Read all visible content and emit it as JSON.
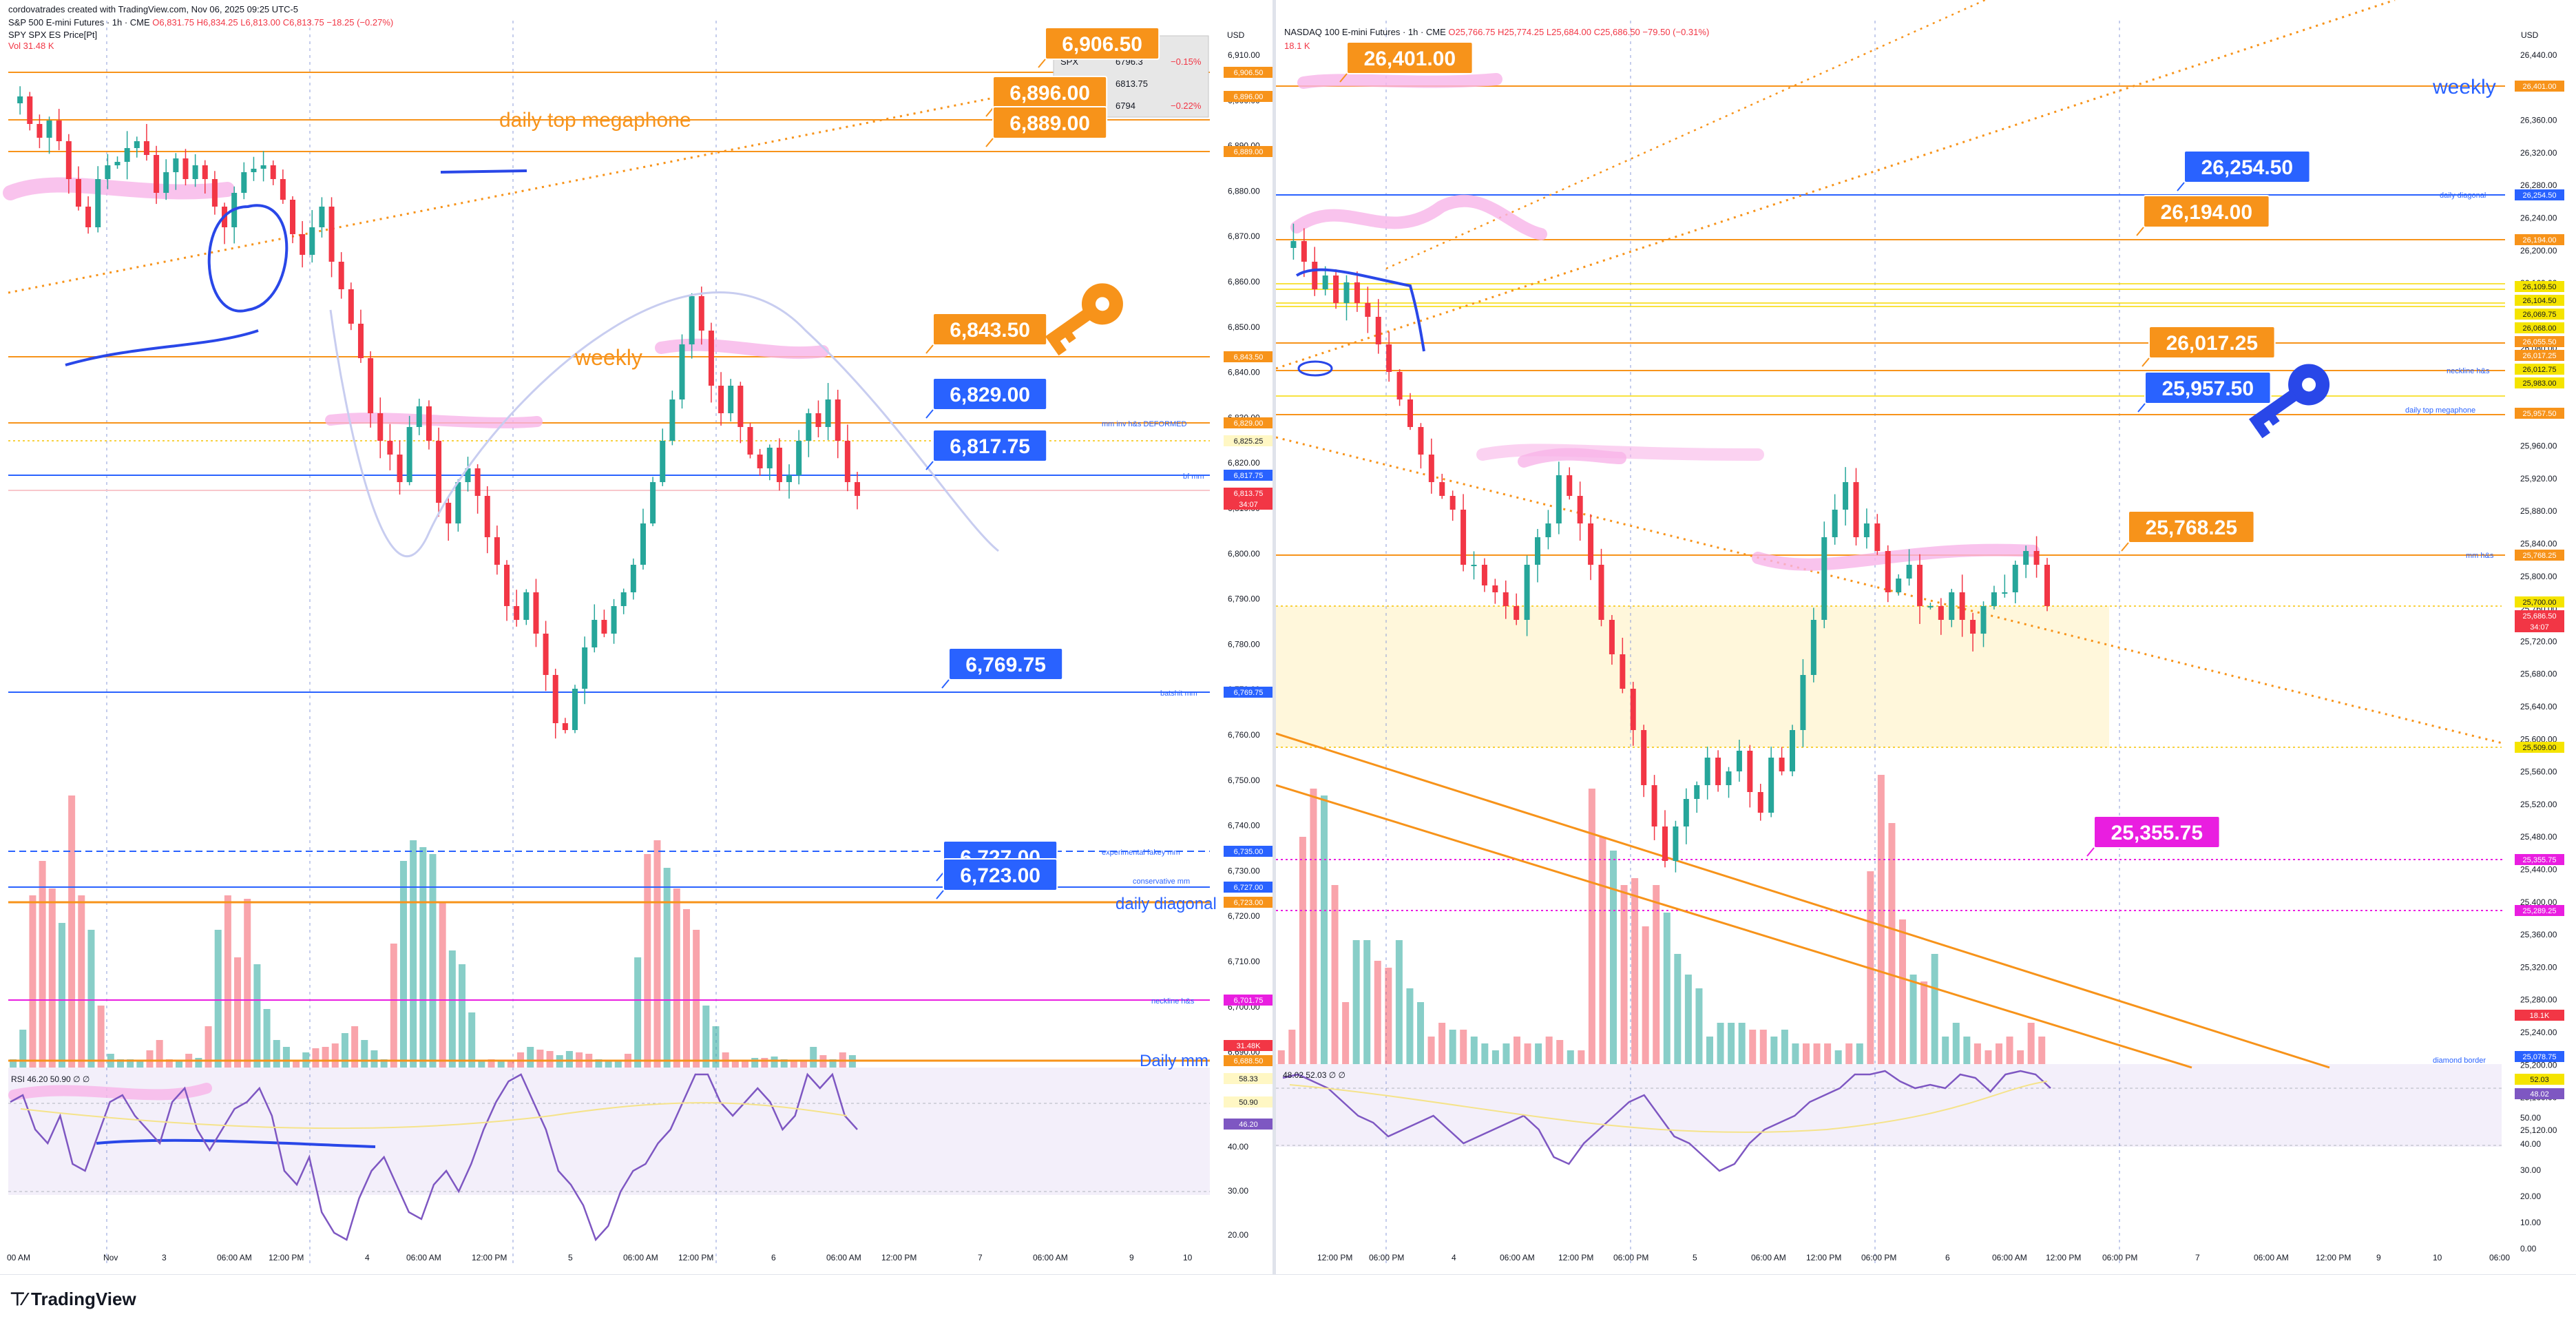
{
  "watermark": {
    "credit": "cordovatrades created with TradingView.com, Nov 06, 2025 09:25 UTC-5"
  },
  "footer": {
    "logo": "TradingView"
  },
  "colors": {
    "up": "#26a69a",
    "down": "#f23645",
    "orange": "#f7931a",
    "blue": "#2962ff",
    "magenta": "#e91ee0",
    "pink": "#f8b4e8",
    "rsi": "#7e57c2"
  },
  "left": {
    "header": {
      "symbol": "S&P 500 E-mini Futures · 1h · CME",
      "open": "O6,831.75",
      "high": "H6,834.25",
      "low": "L6,813.00",
      "close": "C6,813.75",
      "change": "−18.25 (−0.27%)",
      "line2": "SPY SPX ES Price[Pt]",
      "line3": "Vol 31.48 K"
    },
    "currency": "USD",
    "price_labels": [
      "6,910.00",
      "6,900.00",
      "6,890.00",
      "6,880.00",
      "6,870.00",
      "6,860.00",
      "6,850.00",
      "6,840.00",
      "6,830.00",
      "6,820.00",
      "6,810.00",
      "6,800.00",
      "6,790.00",
      "6,780.00",
      "6,770.00",
      "6,760.00",
      "6,750.00",
      "6,740.00",
      "6,730.00",
      "6,720.00",
      "6,710.00",
      "6,700.00",
      "6,690.00"
    ],
    "rsi_labels": [
      "50.00",
      "40.00",
      "30.00",
      "20.00"
    ],
    "time_labels": [
      "00 AM",
      "Nov",
      "3",
      "06:00 AM",
      "12:00 PM",
      "4",
      "06:00 AM",
      "12:00 PM",
      "5",
      "06:00 AM",
      "12:00 PM",
      "6",
      "06:00 AM",
      "12:00 PM",
      "7",
      "06:00 AM",
      "9",
      "10"
    ],
    "level_callouts": [
      "6,906.50",
      "6,896.00",
      "6,889.00",
      "6,843.50",
      "6,829.00",
      "6,817.75",
      "6,769.75",
      "6,727.00",
      "6,723.00"
    ],
    "annotations": {
      "daily_top_megaphone": "daily top megaphone",
      "weekly": "weekly",
      "daily_diagonal": "daily diagonal",
      "daily_mm": "Daily mm",
      "mm_inv_hbs": "mm inv h&s   DEFORMED",
      "bf_mm": "bf mm",
      "batshit_mm": "batshit mm",
      "experimental": "experimental fakey mm",
      "conservative": "conservative mm",
      "neckline": "neckline h&s"
    },
    "axis_tags": [
      "6,906.50",
      "6,896.00",
      "6,889.00",
      "6,843.50",
      "6,829.00",
      "6,825.25",
      "6,817.75",
      "6,813.75",
      "34:07",
      "6,769.75",
      "6,735.00",
      "6,727.00",
      "6,723.00",
      "6,701.75",
      "31.48K",
      "6,688.50",
      "58.33",
      "50.90",
      "46.20"
    ],
    "overlay_table": {
      "rows": [
        [
          "SPX",
          "6796.3",
          "−0.15%"
        ],
        [
          "",
          "6813.75",
          ""
        ],
        [
          "",
          "6794",
          "−0.22%"
        ]
      ]
    },
    "rsi_header": "RSI 46.20 50.90 ∅ ∅"
  },
  "right": {
    "header": {
      "symbol": "NASDAQ 100 E-mini Futures · 1h · CME",
      "open": "O25,766.75",
      "high": "H25,774.25",
      "low": "L25,684.00",
      "close": "C25,686.50",
      "change": "−79.50 (−0.31%)",
      "line2": "18.1 K"
    },
    "currency": "USD",
    "price_labels": [
      "26,440.00",
      "26,400.00",
      "26,360.00",
      "26,320.00",
      "26,280.00",
      "26,240.00",
      "26,200.00",
      "26,160.00",
      "26,120.00",
      "26,080.00",
      "26,040.00",
      "26,000.00",
      "25,960.00",
      "25,920.00",
      "25,880.00",
      "25,840.00",
      "25,800.00",
      "25,760.00",
      "25,720.00",
      "25,680.00",
      "25,640.00",
      "25,600.00",
      "25,560.00",
      "25,520.00",
      "25,480.00",
      "25,440.00",
      "25,400.00",
      "25,360.00",
      "25,320.00",
      "25,280.00",
      "25,240.00",
      "25,200.00",
      "25,160.00",
      "25,120.00"
    ],
    "rsi_labels": [
      "50.00",
      "40.00",
      "30.00",
      "20.00",
      "10.00",
      "0.00"
    ],
    "time_labels": [
      "12:00 PM",
      "06:00 PM",
      "4",
      "06:00 AM",
      "12:00 PM",
      "06:00 PM",
      "5",
      "06:00 AM",
      "12:00 PM",
      "06:00 PM",
      "6",
      "06:00 AM",
      "12:00 PM",
      "06:00 PM",
      "7",
      "06:00 AM",
      "12:00 PM",
      "9",
      "10",
      "06:00"
    ],
    "level_callouts": [
      "26,401.00",
      "26,254.50",
      "26,194.00",
      "26,017.25",
      "25,957.50",
      "25,768.25",
      "25,355.75"
    ],
    "annotations": {
      "weekly": "weekly",
      "daily_diagonal": "daily diagonal",
      "neckline": "neckline h&s",
      "daily_top_megaphone": "daily top megaphone",
      "mm_hbs": "mm h&s",
      "diamond_border": "diamond border"
    },
    "axis_tags": [
      "26,401.00",
      "26,254.50",
      "26,194.00",
      "26,109.50",
      "26,104.50",
      "26,069.75",
      "26,068.00",
      "26,055.50",
      "26,017.25",
      "26,012.75",
      "25,983.00",
      "25,957.50",
      "25,768.25",
      "25,700.00",
      "25,686.50",
      "34:07",
      "25,509.00",
      "25,355.75",
      "25,289.25",
      "18.1K",
      "25,078.75",
      "52.03",
      "48.02"
    ],
    "rsi_header": "48.02 52.03 ∅ ∅"
  }
}
